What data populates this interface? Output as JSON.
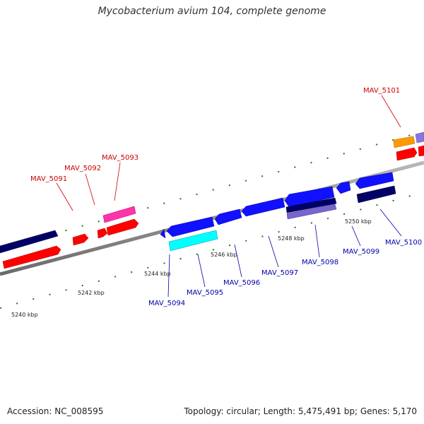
{
  "title": "Mycobacterium avium 104, complete genome",
  "footer": {
    "accession": "Accession: NC_008595",
    "summary": "Topology: circular; Length: 5,475,491 bp; Genes: 5,170"
  },
  "colors": {
    "backbone": "#888888",
    "ticks": "#1a7a1a",
    "label_top": "#cc0000",
    "label_bottom": "#0000aa"
  },
  "scale_labels": [
    "5240 kbp",
    "5242 kbp",
    "5244 kbp",
    "5246 kbp",
    "5248 kbp",
    "5250 kbp"
  ],
  "genes": {
    "MAV_5091": "MAV_5091",
    "MAV_5092": "MAV_5092",
    "MAV_5093": "MAV_5093",
    "MAV_5094": "MAV_5094",
    "MAV_5095": "MAV_5095",
    "MAV_5096": "MAV_5096",
    "MAV_5097": "MAV_5097",
    "MAV_5098": "MAV_5098",
    "MAV_5099": "MAV_5099",
    "MAV_5100": "MAV_5100",
    "MAV_5101": "MAV_5101"
  }
}
